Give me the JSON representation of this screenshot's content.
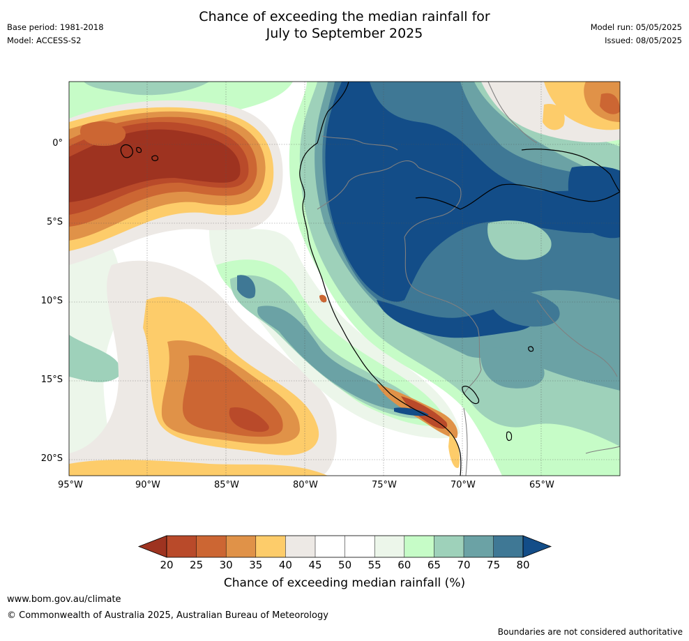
{
  "header": {
    "title_line1": "Chance of exceeding the median rainfall for",
    "title_line2": "July to September 2025",
    "base_period": "Base period: 1981-2018",
    "model": "Model: ACCESS-S2",
    "model_run": "Model run: 05/05/2025",
    "issued": "Issued: 08/05/2025"
  },
  "map": {
    "lon_labels": [
      "95°W",
      "90°W",
      "85°W",
      "80°W",
      "75°W",
      "70°W",
      "65°W"
    ],
    "lat_labels": [
      "0°",
      "5°S",
      "10°S",
      "15°S",
      "20°S"
    ],
    "colors": {
      "c20": "#9e3320",
      "c25": "#b94a2a",
      "c30": "#cc6633",
      "c35": "#e09248",
      "c40": "#fdcc6a",
      "c45": "#ede9e5",
      "c50": "#ffffff",
      "c55": "#ffffff",
      "c60": "#ecf6ea",
      "c65": "#c6fcc7",
      "c70": "#9ed1ba",
      "c75": "#6ba2a5",
      "c80": "#3f7895",
      "c85": "#134d88",
      "coast": "#000000",
      "border": "#808080"
    }
  },
  "colorbar": {
    "ticks": [
      "20",
      "25",
      "30",
      "35",
      "40",
      "45",
      "50",
      "55",
      "60",
      "65",
      "70",
      "75",
      "80"
    ],
    "title": "Chance of exceeding median rainfall (%)"
  },
  "footer": {
    "website": "www.bom.gov.au/climate",
    "copyright": "© Commonwealth of Australia 2025, Australian Bureau of Meteorology",
    "disclaimer": "Boundaries are not considered authoritative"
  }
}
